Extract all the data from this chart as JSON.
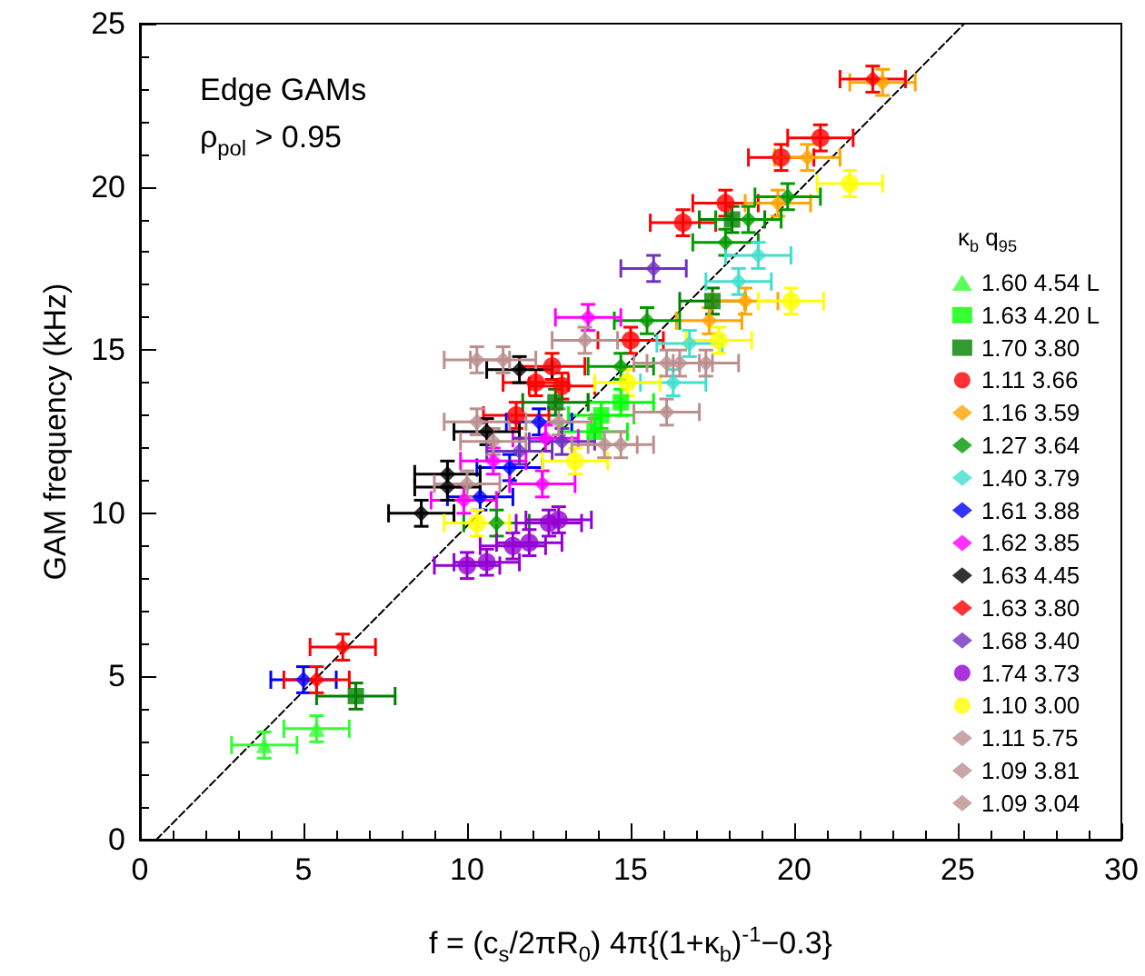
{
  "chart_data": {
    "type": "scatter",
    "xlabel": "f = (c$_{s}$/2πR$_{0}$) 4π{(1+κ$_{b}$)$^{-1}$−0.3}",
    "ylabel": "GAM frequency (kHz)",
    "legend_title": "κ$_{b}$  q$_{95}$",
    "annotations": [
      "Edge GAMs",
      "ρ$_{pol}$ > 0.95"
    ],
    "xlim": [
      0,
      30
    ],
    "ylim": [
      0,
      25
    ],
    "xticks": [
      0,
      5,
      10,
      15,
      20,
      25,
      30
    ],
    "yticks": [
      0,
      5,
      10,
      15,
      20,
      25
    ],
    "grid": false,
    "legend": "right",
    "series": [
      {
        "name": "1.60 4.54 L",
        "color": "#33ff33",
        "marker": "triangle",
        "x": [
          3.8,
          5.4
        ],
        "values": [
          2.9,
          3.4
        ],
        "xerrors": [
          1.0,
          1.0
        ],
        "errors": [
          0.4,
          0.4
        ]
      },
      {
        "name": "1.63 4.20 L",
        "color": "#00ff00",
        "marker": "square",
        "x": [
          14.1,
          14.7,
          13.9
        ],
        "values": [
          13.0,
          13.4,
          12.5
        ],
        "xerrors": [
          1.0,
          1.0,
          1.0
        ],
        "errors": [
          0.4,
          0.4,
          0.4
        ]
      },
      {
        "name": "1.70 3.80",
        "color": "#008000",
        "marker": "square",
        "x": [
          6.6,
          12.7,
          17.5,
          18.1
        ],
        "values": [
          4.4,
          13.4,
          16.5,
          19.0
        ],
        "xerrors": [
          1.2,
          1.0,
          1.0,
          1.0
        ],
        "errors": [
          0.4,
          0.4,
          0.4,
          0.4
        ]
      },
      {
        "name": "1.11 3.66",
        "color": "#ff0000",
        "marker": "circle",
        "x": [
          11.5,
          12.1,
          12.6,
          12.9,
          15.0,
          16.6,
          17.9,
          19.6,
          20.8
        ],
        "values": [
          13.0,
          14.0,
          14.5,
          13.9,
          15.3,
          18.9,
          19.5,
          20.9,
          21.5
        ],
        "xerrors": [
          1.0,
          1.0,
          1.0,
          1.0,
          1.0,
          1.0,
          1.0,
          1.0,
          1.0
        ],
        "errors": [
          0.4,
          0.4,
          0.4,
          0.4,
          0.4,
          0.4,
          0.4,
          0.4,
          0.4
        ]
      },
      {
        "name": "1.16 3.59",
        "color": "#ffa500",
        "marker": "diamond",
        "x": [
          17.4,
          18.5,
          19.5,
          20.4,
          22.7
        ],
        "values": [
          15.9,
          16.5,
          19.5,
          20.9,
          23.2
        ],
        "xerrors": [
          1.0,
          1.0,
          1.0,
          1.0,
          1.0
        ],
        "errors": [
          0.4,
          0.4,
          0.4,
          0.4,
          0.4
        ]
      },
      {
        "name": "1.27 3.64",
        "color": "#009900",
        "marker": "diamond",
        "x": [
          10.9,
          14.7,
          15.5,
          17.9,
          18.6,
          19.8
        ],
        "values": [
          9.7,
          14.5,
          15.9,
          18.3,
          19.0,
          19.7
        ],
        "xerrors": [
          1.0,
          1.0,
          1.0,
          1.0,
          1.0,
          1.0
        ],
        "errors": [
          0.4,
          0.4,
          0.4,
          0.4,
          0.4,
          0.4
        ]
      },
      {
        "name": "1.40 3.79",
        "color": "#40e0d0",
        "marker": "diamond",
        "x": [
          16.3,
          16.8,
          18.3,
          18.9
        ],
        "values": [
          14.0,
          15.2,
          17.1,
          17.9
        ],
        "xerrors": [
          1.0,
          1.0,
          1.0,
          1.0
        ],
        "errors": [
          0.4,
          0.4,
          0.4,
          0.4
        ]
      },
      {
        "name": "1.61 3.88",
        "color": "#0000ff",
        "marker": "diamond",
        "x": [
          5.0,
          10.4,
          11.3,
          12.2
        ],
        "values": [
          4.9,
          10.5,
          11.4,
          12.8
        ],
        "xerrors": [
          1.0,
          1.0,
          1.0,
          1.0
        ],
        "errors": [
          0.4,
          0.4,
          0.4,
          0.4
        ]
      },
      {
        "name": "1.62 3.85",
        "color": "#ff00ff",
        "marker": "diamond",
        "x": [
          9.9,
          10.8,
          12.3,
          12.4,
          13.7
        ],
        "values": [
          10.4,
          11.6,
          10.9,
          12.3,
          16.0
        ],
        "xerrors": [
          1.0,
          1.0,
          1.0,
          1.0,
          1.0
        ],
        "errors": [
          0.4,
          0.4,
          0.4,
          0.4,
          0.4
        ]
      },
      {
        "name": "1.63 4.45",
        "color": "#000000",
        "marker": "diamond",
        "x": [
          8.6,
          9.4,
          9.4,
          10.6,
          11.6
        ],
        "values": [
          10.0,
          10.8,
          11.2,
          12.5,
          14.4
        ],
        "xerrors": [
          1.0,
          1.0,
          1.0,
          1.0,
          1.0
        ],
        "errors": [
          0.4,
          0.4,
          0.4,
          0.4,
          0.4
        ]
      },
      {
        "name": "1.63 3.80",
        "color": "#ff0000",
        "marker": "diamond",
        "x": [
          5.4,
          6.2,
          22.4
        ],
        "values": [
          4.9,
          5.9,
          23.3
        ],
        "xerrors": [
          1.0,
          1.0,
          1.0
        ],
        "errors": [
          0.4,
          0.4,
          0.4
        ]
      },
      {
        "name": "1.68 3.40",
        "color": "#7030c0",
        "marker": "diamond",
        "x": [
          11.6,
          12.9,
          15.7
        ],
        "values": [
          11.9,
          12.2,
          17.5
        ],
        "xerrors": [
          1.0,
          1.0,
          1.0
        ],
        "errors": [
          0.4,
          0.4,
          0.4
        ]
      },
      {
        "name": "1.74 3.73",
        "color": "#9400d3",
        "marker": "circle",
        "x": [
          10.0,
          10.6,
          11.4,
          11.9,
          12.5,
          12.8
        ],
        "values": [
          8.4,
          8.5,
          9.0,
          9.1,
          9.7,
          9.8
        ],
        "xerrors": [
          1.0,
          1.0,
          1.0,
          1.0,
          1.0,
          1.0
        ],
        "errors": [
          0.4,
          0.4,
          0.4,
          0.4,
          0.4,
          0.4
        ]
      },
      {
        "name": "1.10 3.00",
        "color": "#ffff00",
        "marker": "circle",
        "x": [
          10.3,
          13.3,
          14.9,
          17.7,
          19.9,
          21.7
        ],
        "values": [
          9.7,
          11.6,
          14.0,
          15.3,
          16.5,
          20.1
        ],
        "xerrors": [
          1.0,
          1.0,
          1.0,
          1.0,
          1.0,
          1.0
        ],
        "errors": [
          0.4,
          0.4,
          0.4,
          0.4,
          0.4,
          0.4
        ]
      },
      {
        "name": "1.11 5.75",
        "color": "#bc8f8f",
        "marker": "diamond",
        "x": [
          10.3,
          11.1,
          13.6,
          16.1
        ],
        "values": [
          14.7,
          14.7,
          15.3,
          14.6
        ],
        "xerrors": [
          1.0,
          1.0,
          1.0,
          1.0
        ],
        "errors": [
          0.4,
          0.4,
          0.4,
          0.4
        ]
      },
      {
        "name": "1.09 3.81",
        "color": "#bc8f8f",
        "marker": "diamond",
        "x": [
          14.2,
          14.7,
          16.1,
          16.5,
          17.3
        ],
        "values": [
          12.1,
          12.1,
          13.1,
          14.6,
          14.6
        ],
        "xerrors": [
          1.0,
          1.0,
          1.0,
          1.0,
          1.0
        ],
        "errors": [
          0.4,
          0.4,
          0.4,
          0.4,
          0.4
        ]
      },
      {
        "name": "1.09 3.04",
        "color": "#bc8f8f",
        "marker": "diamond",
        "x": [
          10.0,
          10.3,
          10.8,
          12.8
        ],
        "values": [
          10.9,
          12.8,
          12.2,
          12.8
        ],
        "xerrors": [
          1.0,
          1.0,
          1.0,
          1.0
        ],
        "errors": [
          0.4,
          0.4,
          0.4,
          0.4
        ]
      },
      {
        "type": "line",
        "color": "#000000",
        "marker": "none",
        "line_style": "dashed",
        "x": [
          0.5,
          25.2
        ],
        "values": [
          0,
          25
        ]
      }
    ]
  }
}
